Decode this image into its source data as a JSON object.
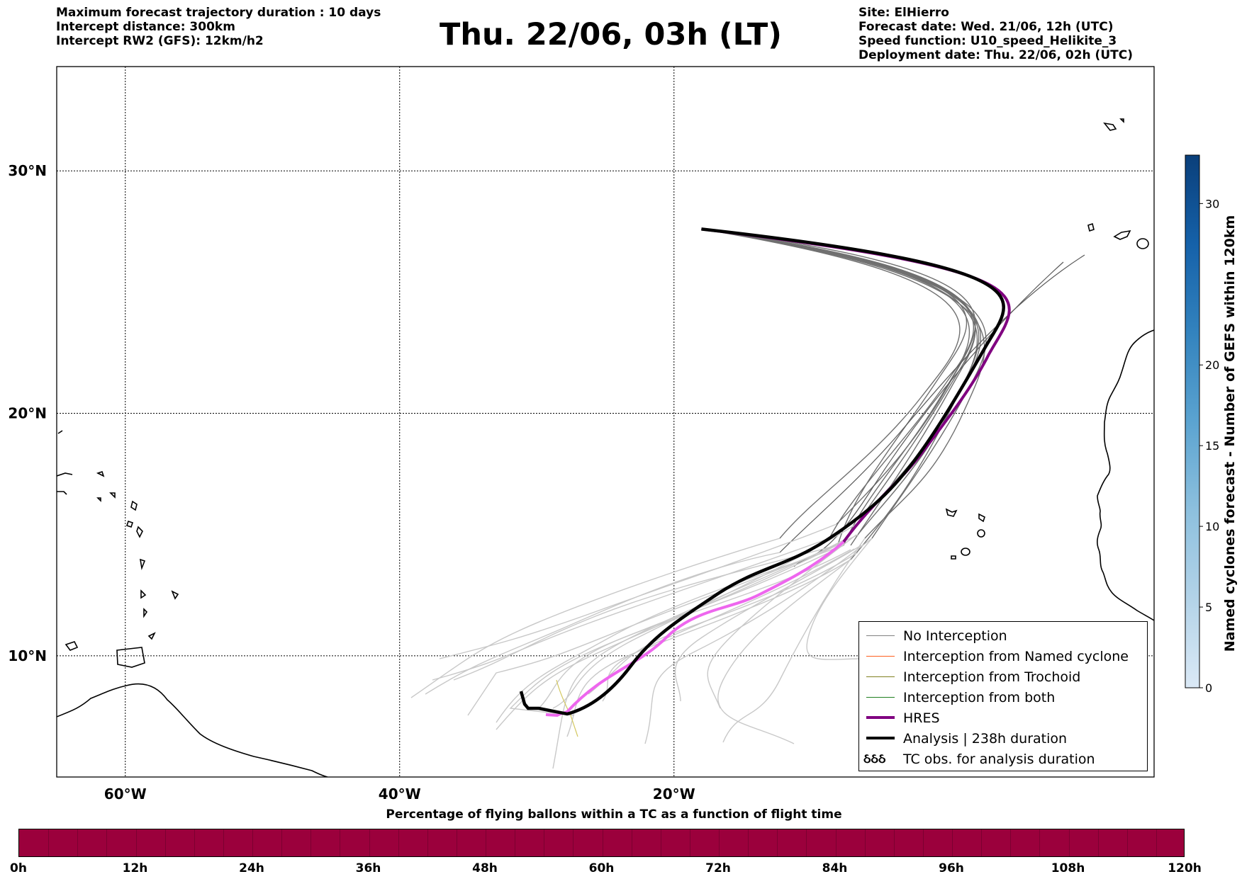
{
  "header": {
    "left": [
      "Maximum forecast trajectory duration : 10 days",
      "Intercept distance: 300km",
      "Intercept RW2 (GFS):  12km/h2"
    ],
    "title": "Thu. 22/06, 03h (LT)",
    "right": [
      "Site: ElHierro",
      "Forecast date: Wed. 21/06, 12h (UTC)",
      "Speed function: U10_speed_Helikite_3",
      "Deployment date: Thu. 22/06, 02h (UTC)"
    ]
  },
  "map": {
    "lon_range": [
      -65,
      15
    ],
    "lat_range": [
      5,
      34.3
    ],
    "lon_ticks": [
      {
        "value": -60,
        "label": "60°W"
      },
      {
        "value": -40,
        "label": "40°W"
      },
      {
        "value": -20,
        "label": "20°W"
      }
    ],
    "lat_ticks": [
      {
        "value": 30,
        "label": "30°N"
      },
      {
        "value": 20,
        "label": "20°N"
      },
      {
        "value": 10,
        "label": "10°N"
      }
    ],
    "grid": true,
    "release_site": {
      "lon": -18.0,
      "lat": 27.6
    },
    "colors": {
      "no_interception_dark": "#666666",
      "no_interception_light": "#c8c8c8",
      "hres": "#800080",
      "hres_late": "#ee66ee",
      "analysis": "#000000",
      "coast": "#000000"
    }
  },
  "legend": {
    "placement": "bottom-right",
    "items": [
      {
        "label": "No Interception",
        "color": "#808080",
        "style": "thin"
      },
      {
        "label": "Interception from Named cyclone",
        "color": "#ff6020",
        "style": "thin"
      },
      {
        "label": "Interception from Trochoid",
        "color": "#808020",
        "style": "thin"
      },
      {
        "label": "Interception from both",
        "color": "#208020",
        "style": "thin"
      },
      {
        "label": "HRES",
        "color": "#800080",
        "style": "thick"
      },
      {
        "label": "Analysis | 238h duration",
        "color": "#000000",
        "style": "thick"
      },
      {
        "label": "TC obs. for analysis duration",
        "color": "#000000",
        "style": "symbol",
        "symbol": "ઠઠઠ"
      }
    ]
  },
  "colorbar": {
    "title": "Named cyclones forecast - Number of GEFS within 120km",
    "range": [
      0,
      33
    ],
    "ticks": [
      "0",
      "5",
      "10",
      "15",
      "20",
      "30"
    ],
    "color_stops": [
      "#dbe9f6",
      "#b3d3e8",
      "#8dc0de",
      "#5ba3d0",
      "#3383be",
      "#1561a9",
      "#0a3f7a"
    ]
  },
  "percentage_bar": {
    "title": "Percentage of flying ballons within a TC as a function of flight time",
    "ticks": [
      "0h",
      "12h",
      "24h",
      "36h",
      "48h",
      "60h",
      "72h",
      "84h",
      "96h",
      "108h",
      "120h"
    ],
    "color": "#9b003c"
  }
}
